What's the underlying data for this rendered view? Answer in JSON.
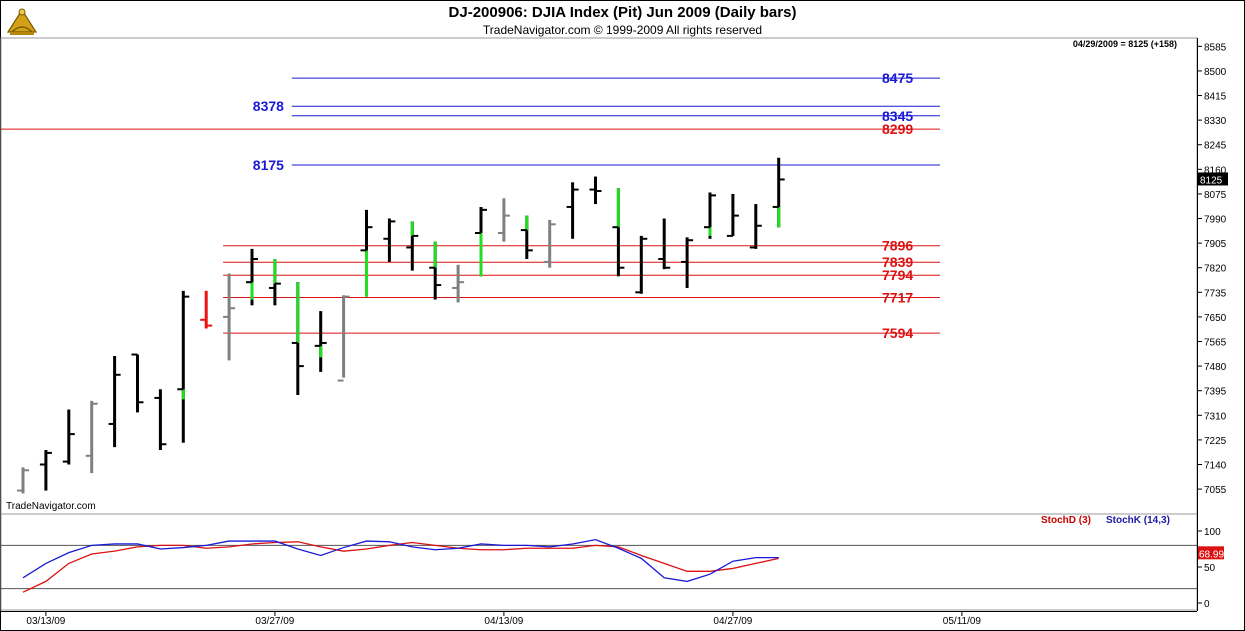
{
  "header": {
    "title": "DJ-200906:  DJIA Index (Pit) Jun 2009  (Daily bars)",
    "subtitle": "TradeNavigator.com © 1999-2009 All rights reserved",
    "readout": "04/29/2009 = 8125 (+158)",
    "watermark": "TradeNavigator.com"
  },
  "chart_data": [
    {
      "type": "ohlc",
      "title": "DJ-200906:  DJIA Index (Pit) Jun 2009  (Daily bars)",
      "ylim": [
        7000,
        8600
      ],
      "y_ticks": [
        8585,
        8500,
        8415,
        8330,
        8245,
        8160,
        8075,
        7990,
        7905,
        7820,
        7735,
        7650,
        7565,
        7480,
        7395,
        7310,
        7225,
        7140,
        7055
      ],
      "x_tick_labels": [
        {
          "label": "03/13/09",
          "bar_index": 1
        },
        {
          "label": "03/27/09",
          "bar_index": 11
        },
        {
          "label": "04/13/09",
          "bar_index": 21
        },
        {
          "label": "04/27/09",
          "bar_index": 31
        },
        {
          "label": "05/11/09",
          "bar_index": 41
        }
      ],
      "last_price": "8125",
      "bars": [
        {
          "o": 7050,
          "h": 7130,
          "l": 7040,
          "c": 7120,
          "color": "gray"
        },
        {
          "o": 7140,
          "h": 7190,
          "l": 7050,
          "c": 7180,
          "color": "black"
        },
        {
          "o": 7150,
          "h": 7330,
          "l": 7140,
          "c": 7245,
          "color": "black"
        },
        {
          "o": 7170,
          "h": 7360,
          "l": 7110,
          "c": 7350,
          "color": "gray"
        },
        {
          "o": 7280,
          "h": 7515,
          "l": 7200,
          "c": 7450,
          "color": "black"
        },
        {
          "o": 7520,
          "h": 7520,
          "l": 7320,
          "c": 7355,
          "color": "black"
        },
        {
          "o": 7370,
          "h": 7400,
          "l": 7190,
          "c": 7210,
          "color": "black"
        },
        {
          "o": 7400,
          "h": 7740,
          "l": 7215,
          "c": 7720,
          "color": "black_green_tail",
          "green_to": 7365
        },
        {
          "o": 7640,
          "h": 7740,
          "l": 7610,
          "c": 7620,
          "color": "red"
        },
        {
          "o": 7650,
          "h": 7800,
          "l": 7500,
          "c": 7680,
          "color": "gray"
        },
        {
          "o": 7770,
          "h": 7885,
          "l": 7690,
          "c": 7850,
          "color": "black_green_tail",
          "green_to": 7710
        },
        {
          "o": 7750,
          "h": 7850,
          "l": 7690,
          "c": 7765,
          "color": "black_green_tail",
          "green_to": 7850
        },
        {
          "o": 7560,
          "h": 7770,
          "l": 7380,
          "c": 7480,
          "color": "black_green_tail",
          "green_to": 7770
        },
        {
          "o": 7550,
          "h": 7670,
          "l": 7460,
          "c": 7560,
          "color": "black_green_tail",
          "green_to": 7510
        },
        {
          "o": 7430,
          "h": 7725,
          "l": 7440,
          "c": 7720,
          "color": "gray"
        },
        {
          "o": 7880,
          "h": 8020,
          "l": 7720,
          "c": 7960,
          "color": "black_green_tail",
          "green_to": 7720
        },
        {
          "o": 7920,
          "h": 7990,
          "l": 7840,
          "c": 7980,
          "color": "black"
        },
        {
          "o": 7890,
          "h": 7980,
          "l": 7810,
          "c": 7930,
          "color": "black_green_tail",
          "green_to": 7980
        },
        {
          "o": 7820,
          "h": 7910,
          "l": 7710,
          "c": 7760,
          "color": "black_green_tail",
          "green_to": 7910
        },
        {
          "o": 7750,
          "h": 7830,
          "l": 7700,
          "c": 7770,
          "color": "gray"
        },
        {
          "o": 7940,
          "h": 8030,
          "l": 7790,
          "c": 8020,
          "color": "black_green_tail",
          "green_to": 7790
        },
        {
          "o": 7940,
          "h": 8060,
          "l": 7910,
          "c": 8000,
          "color": "gray"
        },
        {
          "o": 7950,
          "h": 8000,
          "l": 7850,
          "c": 7880,
          "color": "black_green_tail",
          "green_to": 8000
        },
        {
          "o": 7840,
          "h": 7985,
          "l": 7820,
          "c": 7970,
          "color": "gray"
        },
        {
          "o": 8030,
          "h": 8115,
          "l": 7920,
          "c": 8090,
          "color": "black"
        },
        {
          "o": 8090,
          "h": 8135,
          "l": 8040,
          "c": 8085,
          "color": "black"
        },
        {
          "o": 7960,
          "h": 8095,
          "l": 7790,
          "c": 7820,
          "color": "black_green_tail",
          "green_to": 8095
        },
        {
          "o": 7735,
          "h": 7930,
          "l": 7730,
          "c": 7920,
          "color": "black"
        },
        {
          "o": 7850,
          "h": 7990,
          "l": 7815,
          "c": 7820,
          "color": "black"
        },
        {
          "o": 7840,
          "h": 7925,
          "l": 7750,
          "c": 7915,
          "color": "black"
        },
        {
          "o": 7960,
          "h": 8080,
          "l": 7920,
          "c": 8070,
          "color": "black_green_tail",
          "green_to": 7930
        },
        {
          "o": 7930,
          "h": 8075,
          "l": 7930,
          "c": 8000,
          "color": "black"
        },
        {
          "o": 7890,
          "h": 8040,
          "l": 7885,
          "c": 7965,
          "color": "black"
        },
        {
          "o": 8030,
          "h": 8200,
          "l": 7960,
          "c": 8125,
          "color": "black_green_tail",
          "green_to": 7960
        }
      ],
      "levels": [
        {
          "value": 8475,
          "label": "8475",
          "color": "#1a1ad6",
          "from_bar": 12,
          "label_side": "right"
        },
        {
          "value": 8378,
          "label": "8378",
          "color": "#1a1ad6",
          "from_bar": 12,
          "label_side": "left"
        },
        {
          "value": 8345,
          "label": "8345",
          "color": "#1a1ad6",
          "from_bar": 12,
          "label_side": "right"
        },
        {
          "value": 8299,
          "label": "8299",
          "color": "#dd1111",
          "from_bar": -1,
          "label_side": "right"
        },
        {
          "value": 8175,
          "label": "8175",
          "color": "#1a1ad6",
          "from_bar": 12,
          "label_side": "left"
        },
        {
          "value": 7896,
          "label": "7896",
          "color": "#dd1111",
          "from_bar": 9,
          "label_side": "right"
        },
        {
          "value": 7839,
          "label": "7839",
          "color": "#dd1111",
          "from_bar": 9,
          "label_side": "right"
        },
        {
          "value": 7794,
          "label": "7794",
          "color": "#dd1111",
          "from_bar": 9,
          "label_side": "right"
        },
        {
          "value": 7717,
          "label": "7717",
          "color": "#dd1111",
          "from_bar": 9,
          "label_side": "right"
        },
        {
          "value": 7594,
          "label": "7594",
          "color": "#dd1111",
          "from_bar": 9,
          "label_side": "right"
        }
      ]
    },
    {
      "type": "line",
      "ylim": [
        0,
        100
      ],
      "y_ticks": [
        100,
        50,
        0
      ],
      "reference_lines": [
        80,
        20
      ],
      "last_value": "68.99",
      "series": [
        {
          "name": "StochD (3)",
          "color": "#dd1111",
          "values": [
            15,
            30,
            55,
            68,
            72,
            78,
            80,
            80,
            76,
            78,
            82,
            84,
            85,
            78,
            72,
            75,
            80,
            84,
            80,
            76,
            74,
            74,
            76,
            76,
            76,
            80,
            78,
            66,
            55,
            44,
            44,
            48,
            55,
            62
          ]
        },
        {
          "name": "StochK (14,3)",
          "color": "#1a1ad6",
          "values": [
            35,
            55,
            70,
            80,
            82,
            82,
            75,
            77,
            80,
            86,
            86,
            86,
            75,
            66,
            77,
            86,
            85,
            78,
            74,
            76,
            82,
            80,
            80,
            78,
            82,
            88,
            76,
            62,
            35,
            30,
            40,
            58,
            63,
            63
          ]
        }
      ]
    }
  ]
}
